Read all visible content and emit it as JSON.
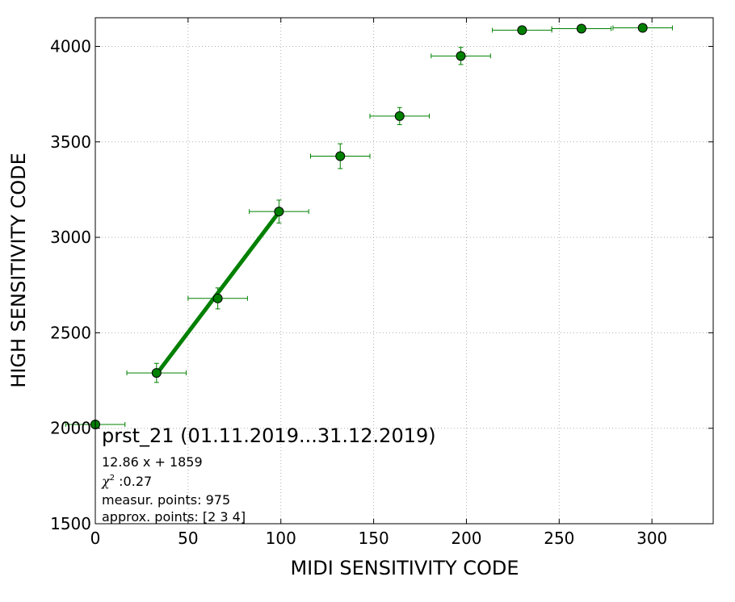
{
  "chart_data": {
    "type": "scatter",
    "xlabel": "MIDI SENSITIVITY CODE",
    "ylabel": "HIGH SENSITIVITY CODE",
    "xlim": [
      0,
      333
    ],
    "ylim": [
      1500,
      4150
    ],
    "xticks": [
      0,
      50,
      100,
      150,
      200,
      250,
      300
    ],
    "yticks": [
      1500,
      2000,
      2500,
      3000,
      3500,
      4000
    ],
    "grid": true,
    "color": "#008000",
    "points": [
      {
        "x": 0,
        "y": 2020,
        "xerr": 16,
        "yerr": 0
      },
      {
        "x": 33,
        "y": 2290,
        "xerr": 16,
        "yerr": 50
      },
      {
        "x": 66,
        "y": 2680,
        "xerr": 16,
        "yerr": 55
      },
      {
        "x": 99,
        "y": 3135,
        "xerr": 16,
        "yerr": 60
      },
      {
        "x": 132,
        "y": 3425,
        "xerr": 16,
        "yerr": 65
      },
      {
        "x": 164,
        "y": 3635,
        "xerr": 16,
        "yerr": 45
      },
      {
        "x": 197,
        "y": 3950,
        "xerr": 16,
        "yerr": 45
      },
      {
        "x": 230,
        "y": 4085,
        "xerr": 16,
        "yerr": 0
      },
      {
        "x": 262,
        "y": 4093,
        "xerr": 16,
        "yerr": 0
      },
      {
        "x": 295,
        "y": 4097,
        "xerr": 16,
        "yerr": 0
      }
    ],
    "fit_line": {
      "x": [
        33,
        99
      ],
      "slope": 12.86,
      "intercept": 1859
    },
    "annotation": {
      "title": "prst_21 (01.11.2019...31.12.2019)",
      "equation": "12.86 x + 1859",
      "chi_symbol": "χ",
      "chi_sup": "2",
      "chi_value": " :0.27",
      "measured": "measur. points: 975",
      "approx": "approx. points: [2 3 4]"
    }
  }
}
